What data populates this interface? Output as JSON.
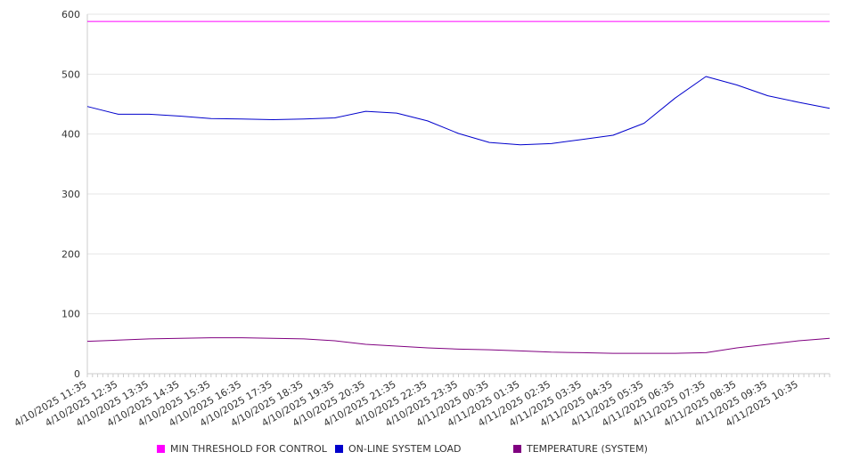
{
  "chart_data": {
    "type": "line",
    "title": "",
    "xlabel": "",
    "ylabel": "",
    "ylim": [
      0,
      600
    ],
    "y_ticks": [
      0,
      100,
      200,
      300,
      400,
      500,
      600
    ],
    "grid": "horizontal",
    "legend_position": "bottom",
    "x_tick_labels": [
      "4/10/2025 11:35",
      "4/10/2025 12:35",
      "4/10/2025 13:35",
      "4/10/2025 14:35",
      "4/10/2025 15:35",
      "4/10/2025 16:35",
      "4/10/2025 17:35",
      "4/10/2025 18:35",
      "4/10/2025 19:35",
      "4/10/2025 20:35",
      "4/10/2025 21:35",
      "4/10/2025 22:35",
      "4/10/2025 23:35",
      "4/11/2025 00:35",
      "4/11/2025 01:35",
      "4/11/2025 02:35",
      "4/11/2025 03:35",
      "4/11/2025 04:35",
      "4/11/2025 05:35",
      "4/11/2025 06:35",
      "4/11/2025 07:35",
      "4/11/2025 08:35",
      "4/11/2025 09:35",
      "4/11/2025 10:35"
    ],
    "x_end": "4/11/2025 11:35",
    "series": [
      {
        "name": "MIN THRESHOLD FOR CONTROL",
        "color": "#ff00ff",
        "x": [
          "4/10/2025 11:35",
          "4/11/2025 11:35"
        ],
        "values": [
          588,
          588
        ]
      },
      {
        "name": "ON-LINE SYSTEM LOAD",
        "color": "#0000cc",
        "x": [
          "4/10/2025 11:35",
          "4/10/2025 12:35",
          "4/10/2025 13:35",
          "4/10/2025 14:35",
          "4/10/2025 15:35",
          "4/10/2025 16:35",
          "4/10/2025 17:35",
          "4/10/2025 18:35",
          "4/10/2025 19:35",
          "4/10/2025 20:35",
          "4/10/2025 21:35",
          "4/10/2025 22:35",
          "4/10/2025 23:35",
          "4/11/2025 00:35",
          "4/11/2025 01:35",
          "4/11/2025 02:35",
          "4/11/2025 03:35",
          "4/11/2025 04:35",
          "4/11/2025 05:35",
          "4/11/2025 06:35",
          "4/11/2025 07:35",
          "4/11/2025 08:35",
          "4/11/2025 09:35",
          "4/11/2025 10:35",
          "4/11/2025 11:35"
        ],
        "values": [
          446,
          433,
          433,
          430,
          426,
          425,
          424,
          425,
          427,
          438,
          435,
          422,
          401,
          386,
          382,
          384,
          391,
          398,
          418,
          460,
          496,
          482,
          464,
          453,
          443
        ]
      },
      {
        "name": "TEMPERATURE (SYSTEM)",
        "color": "#800080",
        "x": [
          "4/10/2025 11:35",
          "4/10/2025 12:35",
          "4/10/2025 13:35",
          "4/10/2025 14:35",
          "4/10/2025 15:35",
          "4/10/2025 16:35",
          "4/10/2025 17:35",
          "4/10/2025 18:35",
          "4/10/2025 19:35",
          "4/10/2025 20:35",
          "4/10/2025 21:35",
          "4/10/2025 22:35",
          "4/10/2025 23:35",
          "4/11/2025 00:35",
          "4/11/2025 01:35",
          "4/11/2025 02:35",
          "4/11/2025 03:35",
          "4/11/2025 04:35",
          "4/11/2025 05:35",
          "4/11/2025 06:35",
          "4/11/2025 07:35",
          "4/11/2025 08:35",
          "4/11/2025 09:35",
          "4/11/2025 10:35",
          "4/11/2025 11:35"
        ],
        "values": [
          54,
          56,
          58,
          59,
          60,
          60,
          59,
          58,
          55,
          49,
          46,
          43,
          41,
          40,
          38,
          36,
          35,
          34,
          34,
          34,
          35,
          43,
          49,
          55,
          59
        ]
      }
    ]
  }
}
